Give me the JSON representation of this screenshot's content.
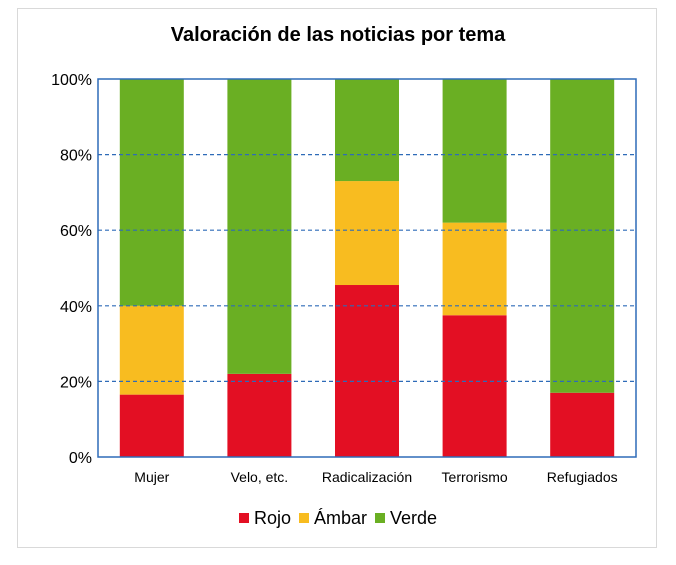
{
  "chart_data": {
    "type": "bar",
    "stacked": true,
    "percent": true,
    "title": "Valoración de las noticias por tema",
    "xlabel": "",
    "ylabel": "",
    "ylim": [
      0,
      100
    ],
    "yticks": [
      "0%",
      "20%",
      "40%",
      "60%",
      "80%",
      "100%"
    ],
    "categories": [
      "Mujer",
      "Velo, etc.",
      "Radicalización",
      "Terrorismo",
      "Refugiados"
    ],
    "series": [
      {
        "name": "Rojo",
        "color": "#e30f23",
        "values": [
          16.5,
          22,
          45.5,
          37.5,
          17
        ]
      },
      {
        "name": "Ámbar",
        "color": "#f8bc20",
        "values": [
          23.5,
          0,
          27.5,
          24.5,
          0
        ]
      },
      {
        "name": "Verde",
        "color": "#6aaf23",
        "values": [
          60,
          78,
          27,
          38,
          83
        ]
      }
    ],
    "grid": true,
    "legend_position": "bottom"
  }
}
